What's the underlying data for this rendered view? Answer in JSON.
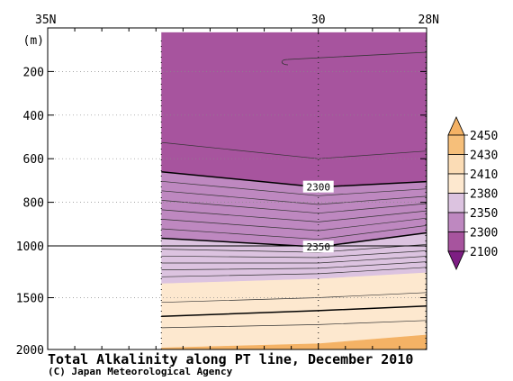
{
  "chart_data": {
    "type": "contour",
    "title": "Total Alkalinity along PT line, December 2010",
    "credit": "(C) Japan Meteorological Agency",
    "y_unit": "(m)",
    "x_axis": {
      "range": [
        35,
        28
      ],
      "ticks": [
        {
          "value": 35,
          "label": "35N"
        },
        {
          "value": 30,
          "label": "30"
        },
        {
          "value": 28,
          "label": "28N"
        }
      ],
      "minor_step": 0.5
    },
    "y_axis": {
      "segments": [
        {
          "from": 0,
          "to": 1000,
          "ticks": [
            200,
            400,
            600,
            800,
            1000
          ]
        },
        {
          "from": 1000,
          "to": 2000,
          "ticks": [
            1500,
            2000
          ]
        }
      ],
      "gridlines": "dotted"
    },
    "data_extent": {
      "lat_north": 32.9,
      "lat_south": 28,
      "depth_top": 20,
      "depth_bottom": 2000
    },
    "data_column_lat": 30,
    "contour_lines": [
      {
        "level": 2300,
        "bold": true,
        "label": "2300",
        "points": [
          [
            32.9,
            660
          ],
          [
            30,
            730
          ],
          [
            28,
            705
          ]
        ]
      },
      {
        "level": 2350,
        "bold": true,
        "label": "2350",
        "points": [
          [
            32.9,
            965
          ],
          [
            30,
            1010
          ],
          [
            28,
            940
          ]
        ]
      },
      {
        "level": 2410,
        "bold": true,
        "label": "",
        "points": [
          [
            32.9,
            1680
          ],
          [
            30,
            1625
          ],
          [
            28,
            1580
          ]
        ]
      }
    ],
    "color_bands": [
      {
        "min": 2100,
        "max": 2300,
        "color": "#a7549e"
      },
      {
        "min": 2300,
        "max": 2350,
        "color": "#be88c0"
      },
      {
        "min": 2350,
        "max": 2380,
        "color": "#dcc3e0"
      },
      {
        "min": 2380,
        "max": 2410,
        "color": "#fde8cf"
      },
      {
        "min": 2410,
        "max": 2430,
        "color": "#fbdcb5"
      },
      {
        "min": 2430,
        "max": 2450,
        "color": "#f4b265"
      }
    ],
    "colorbar": {
      "labels": [
        "2450",
        "2430",
        "2410",
        "2380",
        "2350",
        "2300",
        "2100"
      ],
      "top_color": "#f4b265",
      "bottom_color": "#7d1e83",
      "swatches": [
        "#f6bf7a",
        "#fbdcb5",
        "#fde8cf",
        "#dcc3e0",
        "#be88c0",
        "#a7549e"
      ]
    }
  }
}
